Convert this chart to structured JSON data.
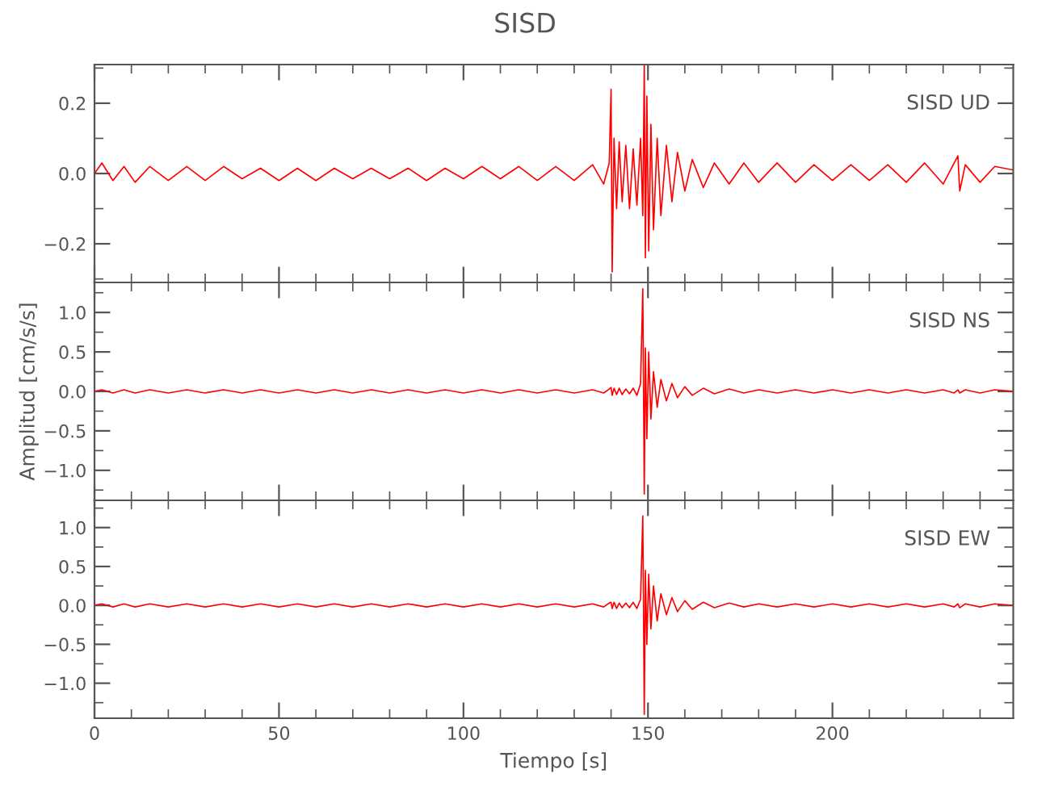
{
  "chart_data": [
    {
      "type": "line",
      "title": "SISD",
      "annotations": [
        "SISD UD"
      ],
      "tick_labels": "y",
      "x": [
        0,
        2,
        5,
        8,
        11,
        15,
        20,
        25,
        30,
        35,
        40,
        45,
        50,
        55,
        60,
        65,
        70,
        75,
        80,
        85,
        90,
        95,
        100,
        105,
        110,
        115,
        120,
        125,
        130,
        135,
        138,
        139.5,
        140,
        140.3,
        140.8,
        141.5,
        142.2,
        143,
        144,
        145,
        146,
        147,
        148,
        148.6,
        149,
        149.3,
        149.7,
        150.2,
        150.8,
        151.5,
        152.5,
        153.5,
        155,
        156.5,
        158,
        160,
        162,
        165,
        168,
        172,
        176,
        180,
        185,
        190,
        195,
        200,
        205,
        210,
        215,
        220,
        225,
        230,
        233,
        234,
        234.5,
        236,
        240,
        244,
        249
      ],
      "series": [
        {
          "color": "#ff0000",
          "values": [
            0,
            0.03,
            -0.02,
            0.02,
            -0.025,
            0.02,
            -0.02,
            0.02,
            -0.02,
            0.02,
            -0.015,
            0.015,
            -0.02,
            0.015,
            -0.02,
            0.015,
            -0.015,
            0.015,
            -0.015,
            0.015,
            -0.02,
            0.015,
            -0.015,
            0.02,
            -0.015,
            0.02,
            -0.02,
            0.02,
            -0.02,
            0.025,
            -0.03,
            0.03,
            0.24,
            -0.28,
            0.1,
            -0.1,
            0.09,
            -0.08,
            0.08,
            -0.1,
            0.07,
            -0.09,
            0.1,
            -0.12,
            0.31,
            -0.24,
            0.22,
            -0.22,
            0.14,
            -0.16,
            0.1,
            -0.12,
            0.08,
            -0.08,
            0.06,
            -0.05,
            0.04,
            -0.04,
            0.03,
            -0.03,
            0.03,
            -0.025,
            0.03,
            -0.025,
            0.025,
            -0.02,
            0.025,
            -0.02,
            0.025,
            -0.025,
            0.03,
            -0.03,
            0.03,
            0.05,
            -0.05,
            0.025,
            -0.025,
            0.02,
            0.01
          ]
        }
      ],
      "xlim": [
        0,
        249
      ],
      "xticks": [
        0,
        {
          "value": 10,
          "label": null
        },
        {
          "value": 20,
          "label": null
        },
        {
          "value": 30,
          "label": null
        },
        {
          "value": 40,
          "label": null
        },
        50,
        {
          "value": 60,
          "label": null
        },
        {
          "value": 70,
          "label": null
        },
        {
          "value": 80,
          "label": null
        },
        {
          "value": 90,
          "label": null
        },
        100,
        {
          "value": 110,
          "label": null
        },
        {
          "value": 120,
          "label": null
        },
        {
          "value": 130,
          "label": null
        },
        {
          "value": 140,
          "label": null
        },
        150,
        {
          "value": 160,
          "label": null
        },
        {
          "value": 170,
          "label": null
        },
        {
          "value": 180,
          "label": null
        },
        {
          "value": 190,
          "label": null
        },
        200,
        {
          "value": 210,
          "label": null
        },
        {
          "value": 220,
          "label": null
        },
        {
          "value": 230,
          "label": null
        },
        {
          "value": 240,
          "label": null
        }
      ],
      "ylim": [
        -0.31,
        0.31
      ],
      "yticks": [
        {
          "value": -0.3,
          "label": null
        },
        {
          "value": -0.2,
          "label": "−0.2"
        },
        {
          "value": -0.1,
          "label": null
        },
        {
          "value": 0,
          "label": "0.0"
        },
        {
          "value": 0.1,
          "label": null
        },
        {
          "value": 0.2,
          "label": "0.2"
        },
        {
          "value": 0.3,
          "label": null
        }
      ]
    },
    {
      "type": "line",
      "ylabel": "Amplitud [cm/s/s]",
      "annotations": [
        "SISD NS"
      ],
      "tick_labels": "y",
      "x": [
        0,
        2,
        5,
        8,
        11,
        15,
        20,
        25,
        30,
        35,
        40,
        45,
        50,
        55,
        60,
        65,
        70,
        75,
        80,
        85,
        90,
        95,
        100,
        105,
        110,
        115,
        120,
        125,
        130,
        135,
        138,
        139.5,
        140,
        140.3,
        140.8,
        141.5,
        142.2,
        143,
        144,
        145,
        146,
        147,
        148,
        148.6,
        149,
        149.3,
        149.7,
        150.2,
        150.8,
        151.5,
        152.5,
        153.5,
        155,
        156.5,
        158,
        160,
        162,
        165,
        168,
        172,
        176,
        180,
        185,
        190,
        195,
        200,
        205,
        210,
        215,
        220,
        225,
        230,
        233,
        234,
        234.5,
        236,
        240,
        244,
        249
      ],
      "series": [
        {
          "color": "#ff0000",
          "values": [
            0,
            0.02,
            -0.02,
            0.02,
            -0.02,
            0.02,
            -0.02,
            0.02,
            -0.02,
            0.02,
            -0.02,
            0.02,
            -0.02,
            0.02,
            -0.02,
            0.02,
            -0.02,
            0.02,
            -0.02,
            0.02,
            -0.02,
            0.02,
            -0.02,
            0.02,
            -0.02,
            0.02,
            -0.02,
            0.02,
            -0.02,
            0.02,
            -0.02,
            0.03,
            0.05,
            -0.05,
            0.04,
            -0.04,
            0.04,
            -0.04,
            0.03,
            -0.03,
            0.04,
            -0.05,
            0.1,
            1.3,
            -1.3,
            0.55,
            -0.6,
            0.5,
            -0.35,
            0.25,
            -0.2,
            0.15,
            -0.12,
            0.1,
            -0.08,
            0.06,
            -0.05,
            0.04,
            -0.03,
            0.03,
            -0.02,
            0.02,
            -0.02,
            0.02,
            -0.02,
            0.02,
            -0.02,
            0.02,
            -0.02,
            0.02,
            -0.02,
            0.02,
            -0.02,
            0.02,
            -0.02,
            0.02,
            -0.02,
            0.02,
            0
          ]
        }
      ],
      "xlim": [
        0,
        249
      ],
      "xticks": [
        0,
        {
          "value": 10,
          "label": null
        },
        {
          "value": 20,
          "label": null
        },
        {
          "value": 30,
          "label": null
        },
        {
          "value": 40,
          "label": null
        },
        50,
        {
          "value": 60,
          "label": null
        },
        {
          "value": 70,
          "label": null
        },
        {
          "value": 80,
          "label": null
        },
        {
          "value": 90,
          "label": null
        },
        100,
        {
          "value": 110,
          "label": null
        },
        {
          "value": 120,
          "label": null
        },
        {
          "value": 130,
          "label": null
        },
        {
          "value": 140,
          "label": null
        },
        150,
        {
          "value": 160,
          "label": null
        },
        {
          "value": 170,
          "label": null
        },
        {
          "value": 180,
          "label": null
        },
        {
          "value": 190,
          "label": null
        },
        200,
        {
          "value": 210,
          "label": null
        },
        {
          "value": 220,
          "label": null
        },
        {
          "value": 230,
          "label": null
        },
        {
          "value": 240,
          "label": null
        }
      ],
      "ylim": [
        -1.38,
        1.38
      ],
      "yticks": [
        {
          "value": -1.25,
          "label": null
        },
        {
          "value": -1.0,
          "label": "−1.0"
        },
        {
          "value": -0.75,
          "label": null
        },
        {
          "value": -0.5,
          "label": "−0.5"
        },
        {
          "value": -0.25,
          "label": null
        },
        {
          "value": 0,
          "label": "0.0"
        },
        {
          "value": 0.25,
          "label": null
        },
        {
          "value": 0.5,
          "label": "0.5"
        },
        {
          "value": 0.75,
          "label": null
        },
        {
          "value": 1.0,
          "label": "1.0"
        },
        {
          "value": 1.25,
          "label": null
        }
      ]
    },
    {
      "type": "line",
      "xlabel": "Tiempo [s]",
      "annotations": [
        "SISD EW"
      ],
      "x": [
        0,
        2,
        5,
        8,
        11,
        15,
        20,
        25,
        30,
        35,
        40,
        45,
        50,
        55,
        60,
        65,
        70,
        75,
        80,
        85,
        90,
        95,
        100,
        105,
        110,
        115,
        120,
        125,
        130,
        135,
        138,
        139.5,
        140,
        140.3,
        140.8,
        141.5,
        142.2,
        143,
        144,
        145,
        146,
        147,
        148,
        148.6,
        149,
        149.3,
        149.7,
        150.2,
        150.8,
        151.5,
        152.5,
        153.5,
        155,
        156.5,
        158,
        160,
        162,
        165,
        168,
        172,
        176,
        180,
        185,
        190,
        195,
        200,
        205,
        210,
        215,
        220,
        225,
        230,
        233,
        234,
        234.5,
        236,
        240,
        244,
        249
      ],
      "series": [
        {
          "color": "#ff0000",
          "values": [
            0,
            0.02,
            -0.02,
            0.02,
            -0.02,
            0.02,
            -0.02,
            0.02,
            -0.02,
            0.02,
            -0.02,
            0.02,
            -0.02,
            0.02,
            -0.02,
            0.02,
            -0.02,
            0.02,
            -0.02,
            0.02,
            -0.02,
            0.02,
            -0.02,
            0.02,
            -0.02,
            0.02,
            -0.02,
            0.02,
            -0.02,
            0.02,
            -0.02,
            0.03,
            0.04,
            -0.04,
            0.04,
            -0.04,
            0.03,
            -0.03,
            0.03,
            -0.03,
            0.04,
            -0.04,
            0.08,
            1.15,
            -1.4,
            0.45,
            -0.5,
            0.4,
            -0.3,
            0.25,
            -0.2,
            0.15,
            -0.12,
            0.1,
            -0.08,
            0.06,
            -0.05,
            0.04,
            -0.03,
            0.03,
            -0.02,
            0.02,
            -0.02,
            0.02,
            -0.02,
            0.02,
            -0.02,
            0.02,
            -0.02,
            0.02,
            -0.02,
            0.02,
            -0.02,
            0.02,
            -0.03,
            0.02,
            -0.02,
            0.02,
            0
          ]
        }
      ],
      "xlim": [
        0,
        249
      ],
      "xticks": [
        0,
        {
          "value": 10,
          "label": null
        },
        {
          "value": 20,
          "label": null
        },
        {
          "value": 30,
          "label": null
        },
        {
          "value": 40,
          "label": null
        },
        50,
        {
          "value": 60,
          "label": null
        },
        {
          "value": 70,
          "label": null
        },
        {
          "value": 80,
          "label": null
        },
        {
          "value": 90,
          "label": null
        },
        100,
        {
          "value": 110,
          "label": null
        },
        {
          "value": 120,
          "label": null
        },
        {
          "value": 130,
          "label": null
        },
        {
          "value": 140,
          "label": null
        },
        150,
        {
          "value": 160,
          "label": null
        },
        {
          "value": 170,
          "label": null
        },
        {
          "value": 180,
          "label": null
        },
        {
          "value": 190,
          "label": null
        },
        200,
        {
          "value": 210,
          "label": null
        },
        {
          "value": 220,
          "label": null
        },
        {
          "value": 230,
          "label": null
        },
        {
          "value": 240,
          "label": null
        }
      ],
      "ylim": [
        -1.45,
        1.35
      ],
      "yticks": [
        {
          "value": -1.25,
          "label": null
        },
        {
          "value": -1.0,
          "label": "−1.0"
        },
        {
          "value": -0.75,
          "label": null
        },
        {
          "value": -0.5,
          "label": "−0.5"
        },
        {
          "value": -0.25,
          "label": null
        },
        {
          "value": 0,
          "label": "0.0"
        },
        {
          "value": 0.25,
          "label": null
        },
        {
          "value": 0.5,
          "label": "0.5"
        },
        {
          "value": 0.75,
          "label": null
        },
        {
          "value": 1.0,
          "label": "1.0"
        },
        {
          "value": 1.25,
          "label": null
        }
      ]
    }
  ]
}
